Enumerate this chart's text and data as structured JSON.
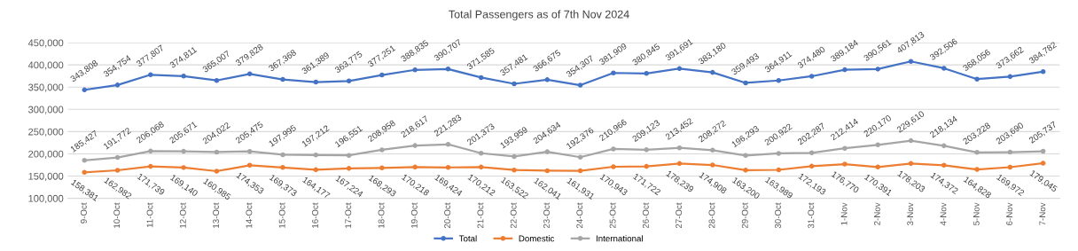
{
  "chart_data": {
    "type": "line",
    "title": "Total Passengers as of 7th Nov 2024",
    "categories": [
      "9-Oct",
      "10-Oct",
      "11-Oct",
      "12-Oct",
      "13-Oct",
      "14-Oct",
      "15-Oct",
      "16-Oct",
      "17-Oct",
      "18-Oct",
      "19-Oct",
      "20-Oct",
      "21-Oct",
      "22-Oct",
      "23-Oct",
      "24-Oct",
      "25-Oct",
      "26-Oct",
      "27-Oct",
      "28-Oct",
      "29-Oct",
      "30-Oct",
      "31-Oct",
      "1-Nov",
      "2-Nov",
      "3-Nov",
      "4-Nov",
      "5-Nov",
      "6-Nov",
      "7-Nov"
    ],
    "series": [
      {
        "name": "Total",
        "color": "#4472c4",
        "values": [
          343808,
          354754,
          377807,
          374811,
          365007,
          379828,
          367368,
          361389,
          363775,
          377251,
          388835,
          390707,
          371585,
          357481,
          366675,
          354307,
          381909,
          380845,
          391691,
          383180,
          359493,
          364911,
          374480,
          389184,
          390561,
          407813,
          392506,
          368056,
          373662,
          384782
        ],
        "value_labels": [
          "343,808",
          "354,754",
          "377,807",
          "374,811",
          "365,007",
          "379,828",
          "367,368",
          "361,389",
          "363,775",
          "377,251",
          "388,835",
          "390,707",
          "371,585",
          "357,481",
          "366,675",
          "354,307",
          "381,909",
          "380,845",
          "391,691",
          "383,180",
          "359,493",
          "364,911",
          "374,480",
          "389,184",
          "390,561",
          "407,813",
          "392,506",
          "368,056",
          "373,662",
          "384,782"
        ]
      },
      {
        "name": "Domestic",
        "color": "#ed7d31",
        "values": [
          158381,
          162982,
          171739,
          169140,
          160985,
          174353,
          169373,
          164177,
          167224,
          168293,
          170218,
          169424,
          170212,
          163522,
          162041,
          161931,
          170943,
          171722,
          178239,
          174908,
          163200,
          163989,
          172193,
          176770,
          170391,
          178203,
          174372,
          164828,
          169972,
          179045
        ],
        "value_labels": [
          "158,381",
          "162,982",
          "171,739",
          "169,140",
          "160,985",
          "174,353",
          "169,373",
          "164,177",
          "167,224",
          "168,293",
          "170,218",
          "169,424",
          "170,212",
          "163,522",
          "162,041",
          "161,931",
          "170,943",
          "171,722",
          "178,239",
          "174,908",
          "163,200",
          "163,989",
          "172,193",
          "176,770",
          "170,391",
          "178,203",
          "174,372",
          "164,828",
          "169,972",
          "179,045"
        ]
      },
      {
        "name": "International",
        "color": "#a5a5a5",
        "values": [
          185427,
          191772,
          206068,
          205671,
          204022,
          205475,
          197995,
          197212,
          196551,
          208958,
          218617,
          221283,
          201373,
          193959,
          204634,
          192376,
          210966,
          209123,
          213452,
          208272,
          196293,
          200922,
          202287,
          212414,
          220170,
          229610,
          218134,
          203228,
          203690,
          205737
        ],
        "value_labels": [
          "185,427",
          "191,772",
          "206,068",
          "205,671",
          "204,022",
          "205,475",
          "197,995",
          "197,212",
          "196,551",
          "208,958",
          "218,617",
          "221,283",
          "201,373",
          "193,959",
          "204,634",
          "192,376",
          "210,966",
          "209,123",
          "213,452",
          "208,272",
          "196,293",
          "200,922",
          "202,287",
          "212,414",
          "220,170",
          "229,610",
          "218,134",
          "203,228",
          "203,690",
          "205,737"
        ]
      }
    ],
    "ylim": [
      100000,
      450000
    ],
    "yticks": [
      {
        "value": 100000,
        "label": "100,000"
      },
      {
        "value": 150000,
        "label": "150,000"
      },
      {
        "value": 200000,
        "label": "200,000"
      },
      {
        "value": 250000,
        "label": "250,000"
      },
      {
        "value": 300000,
        "label": "300,000"
      },
      {
        "value": 350000,
        "label": "350,000"
      },
      {
        "value": 400000,
        "label": "400,000"
      },
      {
        "value": 450000,
        "label": "450,000"
      }
    ],
    "grid": "y",
    "legend": "bottom",
    "marker": "circle",
    "line_style": "solid"
  }
}
